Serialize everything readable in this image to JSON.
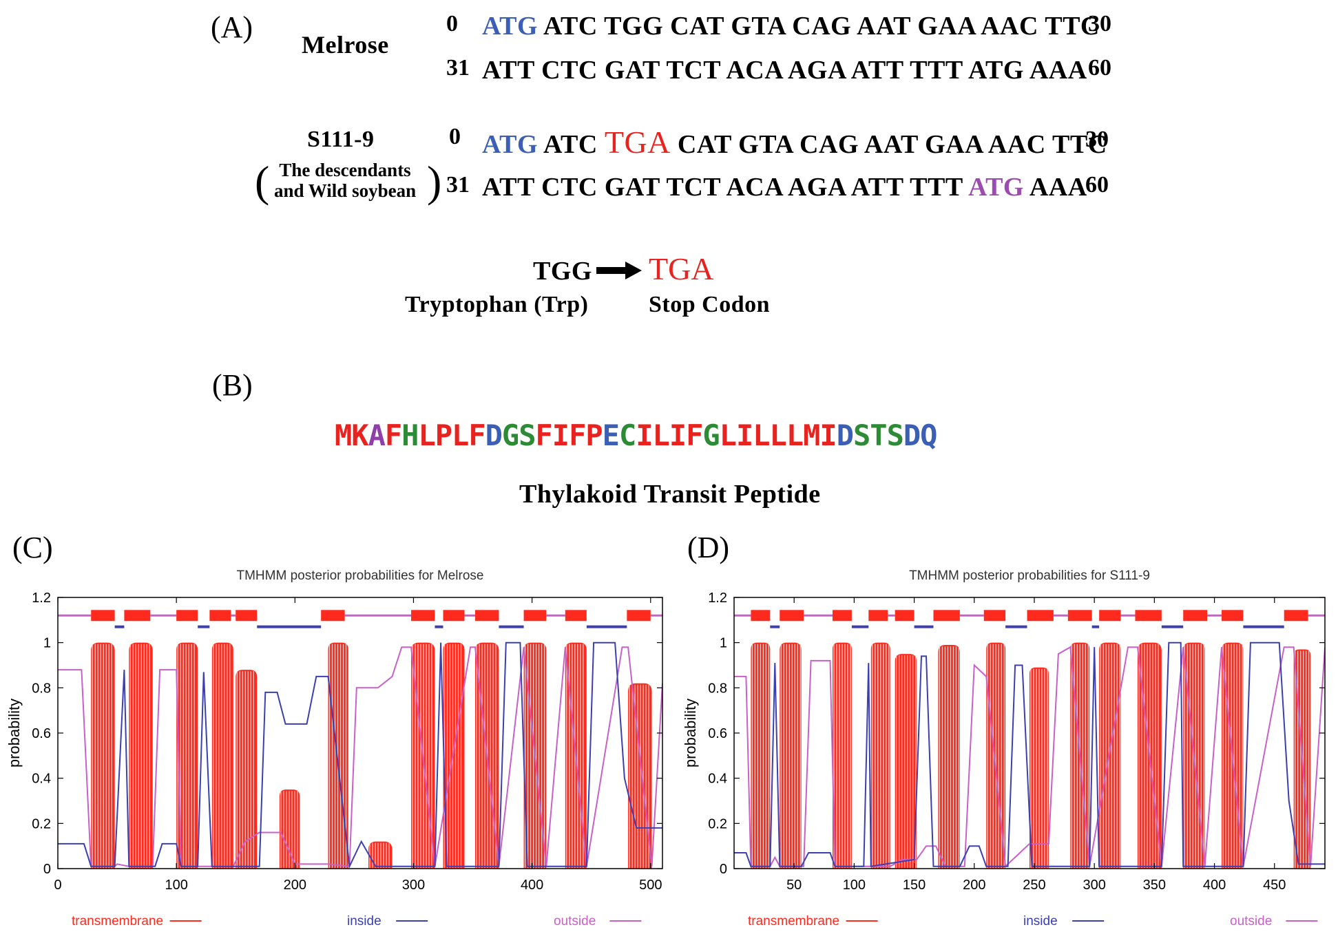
{
  "panel_a": {
    "label": "(A)",
    "melrose": {
      "name": "Melrose",
      "row1": {
        "start": "0",
        "start_codon": "ATG",
        "rest": "ATC TGG CAT GTA CAG AAT GAA AAC TTC",
        "end": "30"
      },
      "row2": {
        "start": "31",
        "seq": "ATT CTC GAT TCT ACA AGA ATT TTT ATG AAA",
        "end": "60"
      }
    },
    "s111": {
      "name": "S111-9",
      "sub1": "The descendants",
      "sub2": "and Wild soybean",
      "row1": {
        "start": "0",
        "start_codon": "ATG",
        "pre": "ATC",
        "mutation": "TGA",
        "rest": "CAT GTA CAG AAT GAA AAC TTC",
        "end": "30"
      },
      "row2": {
        "start": "31",
        "pre": "ATT CTC GAT TCT ACA AGA ATT TTT",
        "alt_codon": "ATG",
        "post": "AAA",
        "end": "60"
      }
    },
    "mutation": {
      "from_codon": "TGG",
      "to_codon": "TGA",
      "from_label": "Tryptophan (Trp)",
      "to_label": "Stop Codon"
    }
  },
  "panel_b": {
    "label": "(B)",
    "peptide": [
      {
        "t": "MK",
        "c": "#e8231f"
      },
      {
        "t": "A",
        "c": "#8e3fa8"
      },
      {
        "t": "F",
        "c": "#e8231f"
      },
      {
        "t": "H",
        "c": "#2e8b35"
      },
      {
        "t": "LPLF",
        "c": "#e8231f"
      },
      {
        "t": "D",
        "c": "#3a5fb4"
      },
      {
        "t": "GS",
        "c": "#2e8b35"
      },
      {
        "t": "FIFP",
        "c": "#e8231f"
      },
      {
        "t": "E",
        "c": "#3a5fb4"
      },
      {
        "t": "C",
        "c": "#2e8b35"
      },
      {
        "t": "ILIF",
        "c": "#e8231f"
      },
      {
        "t": "G",
        "c": "#2e8b35"
      },
      {
        "t": "LILLLMI",
        "c": "#e8231f"
      },
      {
        "t": "D",
        "c": "#3a5fb4"
      },
      {
        "t": "STS",
        "c": "#2e8b35"
      },
      {
        "t": "DQ",
        "c": "#3a5fb4"
      }
    ],
    "caption": "Thylakoid Transit Peptide"
  },
  "chart_data": [
    {
      "panel_label": "(C)",
      "type": "area",
      "title": "TMHMM posterior probabilities for Melrose",
      "xlabel": "",
      "ylabel": "probability",
      "xlim": [
        0,
        510
      ],
      "ylim": [
        0,
        1.2
      ],
      "xticks": [
        0,
        100,
        200,
        300,
        400,
        500
      ],
      "yticks": [
        0,
        0.2,
        0.4,
        0.6,
        0.8,
        1,
        1.2
      ],
      "legend": [
        "transmembrane",
        "inside",
        "outside"
      ],
      "colors": {
        "transmembrane": "#ff2a1e",
        "inside": "#3b3fb0",
        "outside": "#c860c8"
      },
      "tm_peaks": [
        {
          "start": 28,
          "end": 48,
          "height": 1.0
        },
        {
          "start": 60,
          "end": 80,
          "height": 1.0
        },
        {
          "start": 100,
          "end": 118,
          "height": 1.0
        },
        {
          "start": 130,
          "end": 148,
          "height": 1.0
        },
        {
          "start": 150,
          "end": 168,
          "height": 0.88
        },
        {
          "start": 187,
          "end": 204,
          "height": 0.35
        },
        {
          "start": 228,
          "end": 245,
          "height": 1.0
        },
        {
          "start": 262,
          "end": 282,
          "height": 0.12
        },
        {
          "start": 298,
          "end": 318,
          "height": 1.0
        },
        {
          "start": 325,
          "end": 343,
          "height": 1.0
        },
        {
          "start": 352,
          "end": 372,
          "height": 1.0
        },
        {
          "start": 393,
          "end": 412,
          "height": 1.0
        },
        {
          "start": 428,
          "end": 446,
          "height": 1.0
        },
        {
          "start": 481,
          "end": 501,
          "height": 0.82
        }
      ],
      "inside_line": [
        [
          0,
          0.11
        ],
        [
          22,
          0.11
        ],
        [
          28,
          0.01
        ],
        [
          48,
          0.01
        ],
        [
          56,
          0.88
        ],
        [
          60,
          0.01
        ],
        [
          82,
          0.01
        ],
        [
          88,
          0.11
        ],
        [
          100,
          0.11
        ],
        [
          104,
          0.01
        ],
        [
          118,
          0.01
        ],
        [
          123,
          0.87
        ],
        [
          130,
          0.01
        ],
        [
          170,
          0.01
        ],
        [
          175,
          0.78
        ],
        [
          185,
          0.78
        ],
        [
          192,
          0.64
        ],
        [
          210,
          0.64
        ],
        [
          218,
          0.85
        ],
        [
          228,
          0.85
        ],
        [
          246,
          0.01
        ],
        [
          256,
          0.12
        ],
        [
          268,
          0.01
        ],
        [
          296,
          0.01
        ],
        [
          318,
          0.01
        ],
        [
          323,
          1.0
        ],
        [
          328,
          0.01
        ],
        [
          372,
          0.01
        ],
        [
          378,
          1.0
        ],
        [
          390,
          1.0
        ],
        [
          396,
          0.01
        ],
        [
          446,
          0.01
        ],
        [
          452,
          1.0
        ],
        [
          470,
          1.0
        ],
        [
          478,
          0.4
        ],
        [
          488,
          0.18
        ],
        [
          510,
          0.18
        ]
      ],
      "outside_line": [
        [
          0,
          0.88
        ],
        [
          20,
          0.88
        ],
        [
          28,
          0.01
        ],
        [
          48,
          0.01
        ],
        [
          50,
          0.02
        ],
        [
          60,
          0.01
        ],
        [
          80,
          0.01
        ],
        [
          86,
          0.88
        ],
        [
          100,
          0.88
        ],
        [
          104,
          0.01
        ],
        [
          148,
          0.01
        ],
        [
          158,
          0.12
        ],
        [
          170,
          0.16
        ],
        [
          188,
          0.16
        ],
        [
          200,
          0.02
        ],
        [
          228,
          0.02
        ],
        [
          246,
          0.01
        ],
        [
          252,
          0.8
        ],
        [
          270,
          0.8
        ],
        [
          282,
          0.85
        ],
        [
          290,
          0.98
        ],
        [
          298,
          0.98
        ],
        [
          318,
          0.01
        ],
        [
          348,
          0.98
        ],
        [
          352,
          0.98
        ],
        [
          372,
          0.01
        ],
        [
          393,
          0.98
        ],
        [
          412,
          0.01
        ],
        [
          428,
          0.98
        ],
        [
          446,
          0.01
        ],
        [
          476,
          0.98
        ],
        [
          481,
          0.98
        ],
        [
          501,
          0.01
        ],
        [
          510,
          0.82
        ]
      ],
      "topology": [
        {
          "kind": "outside",
          "start": 0,
          "end": 28
        },
        {
          "kind": "tm",
          "start": 28,
          "end": 48
        },
        {
          "kind": "inside",
          "start": 48,
          "end": 56
        },
        {
          "kind": "tm",
          "start": 56,
          "end": 78
        },
        {
          "kind": "outside",
          "start": 78,
          "end": 100
        },
        {
          "kind": "tm",
          "start": 100,
          "end": 118
        },
        {
          "kind": "inside",
          "start": 118,
          "end": 128
        },
        {
          "kind": "tm",
          "start": 128,
          "end": 146
        },
        {
          "kind": "outside",
          "start": 146,
          "end": 150
        },
        {
          "kind": "tm",
          "start": 150,
          "end": 168
        },
        {
          "kind": "inside",
          "start": 168,
          "end": 222
        },
        {
          "kind": "tm",
          "start": 222,
          "end": 242
        },
        {
          "kind": "outside",
          "start": 242,
          "end": 298
        },
        {
          "kind": "tm",
          "start": 298,
          "end": 318
        },
        {
          "kind": "inside",
          "start": 318,
          "end": 325
        },
        {
          "kind": "tm",
          "start": 325,
          "end": 343
        },
        {
          "kind": "outside",
          "start": 343,
          "end": 352
        },
        {
          "kind": "tm",
          "start": 352,
          "end": 372
        },
        {
          "kind": "inside",
          "start": 372,
          "end": 393
        },
        {
          "kind": "tm",
          "start": 393,
          "end": 412
        },
        {
          "kind": "outside",
          "start": 412,
          "end": 428
        },
        {
          "kind": "tm",
          "start": 428,
          "end": 446
        },
        {
          "kind": "inside",
          "start": 446,
          "end": 480
        },
        {
          "kind": "tm",
          "start": 480,
          "end": 500
        },
        {
          "kind": "outside",
          "start": 500,
          "end": 510
        }
      ]
    },
    {
      "panel_label": "(D)",
      "type": "area",
      "title": "TMHMM posterior probabilities for S111-9",
      "xlabel": "",
      "ylabel": "probability",
      "xlim": [
        0,
        492
      ],
      "ylim": [
        0,
        1.2
      ],
      "xticks": [
        50,
        100,
        150,
        200,
        250,
        300,
        350,
        400,
        450
      ],
      "yticks": [
        0,
        0.2,
        0.4,
        0.6,
        0.8,
        1,
        1.2
      ],
      "legend": [
        "transmembrane",
        "inside",
        "outside"
      ],
      "colors": {
        "transmembrane": "#ff2a1e",
        "inside": "#3b3fb0",
        "outside": "#c860c8"
      },
      "tm_peaks": [
        {
          "start": 14,
          "end": 30,
          "height": 1.0
        },
        {
          "start": 38,
          "end": 56,
          "height": 1.0
        },
        {
          "start": 82,
          "end": 98,
          "height": 1.0
        },
        {
          "start": 114,
          "end": 130,
          "height": 1.0
        },
        {
          "start": 134,
          "end": 152,
          "height": 0.95
        },
        {
          "start": 170,
          "end": 188,
          "height": 0.99
        },
        {
          "start": 210,
          "end": 226,
          "height": 1.0
        },
        {
          "start": 246,
          "end": 262,
          "height": 0.89
        },
        {
          "start": 280,
          "end": 296,
          "height": 1.0
        },
        {
          "start": 304,
          "end": 322,
          "height": 1.0
        },
        {
          "start": 336,
          "end": 356,
          "height": 1.0
        },
        {
          "start": 374,
          "end": 392,
          "height": 1.0
        },
        {
          "start": 406,
          "end": 424,
          "height": 1.0
        },
        {
          "start": 466,
          "end": 480,
          "height": 0.97
        }
      ],
      "inside_line": [
        [
          0,
          0.07
        ],
        [
          10,
          0.07
        ],
        [
          14,
          0.01
        ],
        [
          30,
          0.01
        ],
        [
          34,
          0.91
        ],
        [
          38,
          0.01
        ],
        [
          56,
          0.01
        ],
        [
          62,
          0.07
        ],
        [
          80,
          0.07
        ],
        [
          84,
          0.01
        ],
        [
          108,
          0.01
        ],
        [
          112,
          0.91
        ],
        [
          114,
          0.01
        ],
        [
          150,
          0.04
        ],
        [
          156,
          0.94
        ],
        [
          160,
          0.94
        ],
        [
          166,
          0.01
        ],
        [
          188,
          0.01
        ],
        [
          196,
          0.1
        ],
        [
          204,
          0.1
        ],
        [
          210,
          0.01
        ],
        [
          228,
          0.01
        ],
        [
          234,
          0.9
        ],
        [
          240,
          0.9
        ],
        [
          248,
          0.01
        ],
        [
          296,
          0.01
        ],
        [
          300,
          0.98
        ],
        [
          304,
          0.01
        ],
        [
          356,
          0.01
        ],
        [
          362,
          1.0
        ],
        [
          372,
          1.0
        ],
        [
          374,
          0.01
        ],
        [
          424,
          0.01
        ],
        [
          430,
          1.0
        ],
        [
          454,
          1.0
        ],
        [
          462,
          0.3
        ],
        [
          470,
          0.02
        ],
        [
          492,
          0.02
        ]
      ],
      "outside_line": [
        [
          0,
          0.85
        ],
        [
          10,
          0.85
        ],
        [
          14,
          0.01
        ],
        [
          30,
          0.01
        ],
        [
          34,
          0.05
        ],
        [
          38,
          0.01
        ],
        [
          58,
          0.01
        ],
        [
          64,
          0.92
        ],
        [
          80,
          0.92
        ],
        [
          84,
          0.01
        ],
        [
          130,
          0.01
        ],
        [
          140,
          0.04
        ],
        [
          152,
          0.04
        ],
        [
          160,
          0.1
        ],
        [
          168,
          0.1
        ],
        [
          176,
          0.01
        ],
        [
          192,
          0.01
        ],
        [
          200,
          0.9
        ],
        [
          210,
          0.85
        ],
        [
          226,
          0.01
        ],
        [
          246,
          0.11
        ],
        [
          262,
          0.11
        ],
        [
          270,
          0.95
        ],
        [
          280,
          0.98
        ],
        [
          296,
          0.01
        ],
        [
          328,
          0.98
        ],
        [
          336,
          0.98
        ],
        [
          356,
          0.01
        ],
        [
          374,
          0.98
        ],
        [
          392,
          0.01
        ],
        [
          406,
          0.98
        ],
        [
          424,
          0.01
        ],
        [
          458,
          0.98
        ],
        [
          466,
          0.98
        ],
        [
          480,
          0.01
        ],
        [
          492,
          0.98
        ]
      ],
      "topology": [
        {
          "kind": "outside",
          "start": 0,
          "end": 14
        },
        {
          "kind": "tm",
          "start": 14,
          "end": 30
        },
        {
          "kind": "inside",
          "start": 30,
          "end": 38
        },
        {
          "kind": "tm",
          "start": 38,
          "end": 58
        },
        {
          "kind": "outside",
          "start": 58,
          "end": 82
        },
        {
          "kind": "tm",
          "start": 82,
          "end": 98
        },
        {
          "kind": "inside",
          "start": 98,
          "end": 112
        },
        {
          "kind": "tm",
          "start": 112,
          "end": 128
        },
        {
          "kind": "outside",
          "start": 128,
          "end": 134
        },
        {
          "kind": "tm",
          "start": 134,
          "end": 150
        },
        {
          "kind": "inside",
          "start": 150,
          "end": 166
        },
        {
          "kind": "tm",
          "start": 166,
          "end": 188
        },
        {
          "kind": "outside",
          "start": 188,
          "end": 208
        },
        {
          "kind": "tm",
          "start": 208,
          "end": 226
        },
        {
          "kind": "inside",
          "start": 226,
          "end": 244
        },
        {
          "kind": "tm",
          "start": 244,
          "end": 266
        },
        {
          "kind": "outside",
          "start": 266,
          "end": 278
        },
        {
          "kind": "tm",
          "start": 278,
          "end": 298
        },
        {
          "kind": "inside",
          "start": 298,
          "end": 304
        },
        {
          "kind": "tm",
          "start": 304,
          "end": 322
        },
        {
          "kind": "outside",
          "start": 322,
          "end": 334
        },
        {
          "kind": "tm",
          "start": 334,
          "end": 356
        },
        {
          "kind": "inside",
          "start": 356,
          "end": 374
        },
        {
          "kind": "tm",
          "start": 374,
          "end": 394
        },
        {
          "kind": "outside",
          "start": 394,
          "end": 406
        },
        {
          "kind": "tm",
          "start": 406,
          "end": 424
        },
        {
          "kind": "inside",
          "start": 424,
          "end": 458
        },
        {
          "kind": "tm",
          "start": 458,
          "end": 478
        },
        {
          "kind": "outside",
          "start": 478,
          "end": 492
        }
      ]
    }
  ]
}
